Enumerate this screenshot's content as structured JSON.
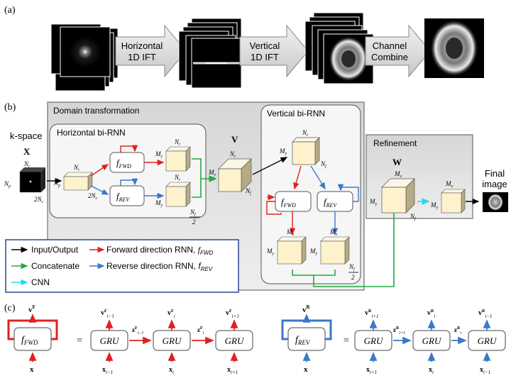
{
  "panel_a": {
    "label": "(a)",
    "step1": [
      "Horizontal",
      "1D IFT"
    ],
    "step2": [
      "Vertical",
      "1D IFT"
    ],
    "step3": [
      "Channel",
      "Combine"
    ]
  },
  "panel_b": {
    "label": "(b)",
    "domain_title": "Domain transformation",
    "horizontal_title": "Horizontal bi-RNN",
    "vertical_title": "Vertical bi-RNN",
    "refinement_title": "Refinement",
    "kspace_label": "k-space",
    "X_label": "X",
    "V_label": "V",
    "W_label": "W",
    "final_image": [
      "Final",
      "image"
    ],
    "f_fwd": "f",
    "f_fwd_sub": "FWD",
    "f_rev": "f",
    "f_rev_sub": "REV",
    "dims": {
      "Nr": "N",
      "Nr_sub": "r",
      "Np": "N",
      "Np_sub": "p",
      "My": "M",
      "My_sub": "y",
      "Mx": "M",
      "Mx_sub": "x",
      "Nf": "N",
      "Nf_sub": "f",
      "two_nc": "2N",
      "two_nc_sub": "c",
      "half": "2"
    },
    "legend": {
      "io": "Input/Output",
      "fwd": "Forward direction RNN, ",
      "fwd_f": "f",
      "fwd_sub": "FWD",
      "concat": "Concatenate",
      "rev": "Reverse direction RNN, ",
      "rev_f": "f",
      "rev_sub": "REV",
      "cnn": "CNN"
    }
  },
  "panel_c": {
    "label": "(c)",
    "gru": "GRU",
    "equals": "=",
    "fwd_out": "v",
    "fwd_out_sup": "F",
    "rev_out": "v",
    "rev_out_sup": "R",
    "input": "x",
    "fwd_states": [
      "i−1",
      "i"
    ],
    "rev_states": [
      "i+1",
      "i"
    ],
    "fwd_outputs": [
      "i−1",
      "i",
      "i+1"
    ],
    "rev_outputs": [
      "i+1",
      "i",
      "i−1"
    ],
    "fwd_inputs": [
      "i−1",
      "i",
      "i+1"
    ],
    "rev_inputs": [
      "i+1",
      "i",
      "i−1"
    ],
    "z": "z"
  },
  "colors": {
    "forward": "#e02020",
    "reverse": "#3a78c8",
    "concat": "#22aa44",
    "cnn": "#22d8f0",
    "cube_front": "#fdf2cc",
    "cube_top": "#fbf7e6",
    "cube_side": "#b6ab86",
    "panel_bg": "#e8e8e8"
  }
}
